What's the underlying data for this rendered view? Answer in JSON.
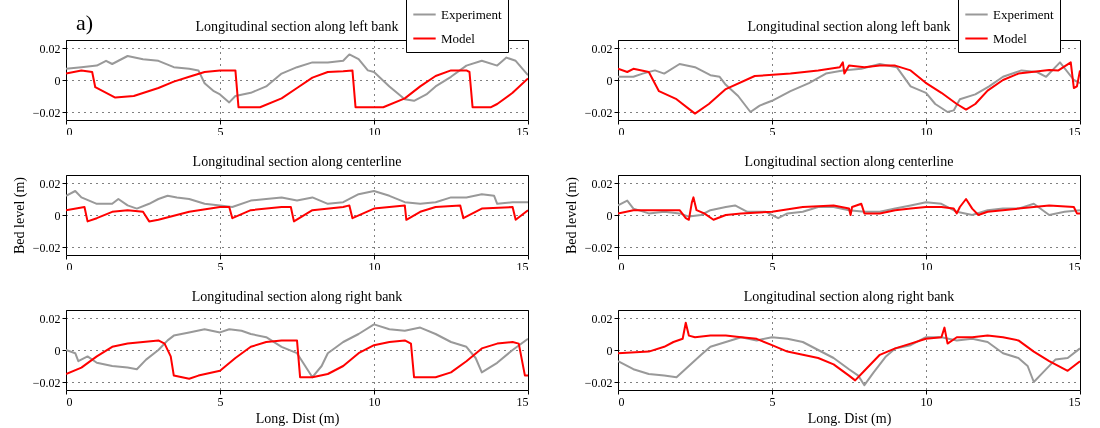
{
  "chart_data": [
    {
      "type": "line",
      "title": "Longitudinal section along left bank",
      "annotations": [
        "a)"
      ],
      "xlim": [
        0,
        15
      ],
      "xticks": [
        0,
        5,
        10,
        15
      ],
      "ylim": [
        -0.025,
        0.025
      ],
      "yticks": [
        -0.02,
        0,
        0.02
      ],
      "grid": true,
      "legend": "top right",
      "series": [
        {
          "name": "Experiment",
          "color": "#999999",
          "x": [
            0,
            0.5,
            1,
            1.3,
            1.5,
            2,
            2.5,
            3,
            3.5,
            4,
            4.3,
            4.5,
            4.8,
            5,
            5.3,
            5.5,
            6,
            6.5,
            7,
            7.5,
            8,
            8.5,
            9,
            9.2,
            9.5,
            9.8,
            10,
            10.5,
            11,
            11.3,
            11.7,
            12,
            12.5,
            13,
            13.5,
            14,
            14.3,
            14.6,
            15
          ],
          "values": [
            0.007,
            0.008,
            0.009,
            0.012,
            0.01,
            0.015,
            0.013,
            0.012,
            0.008,
            0.007,
            0.006,
            -0.002,
            -0.007,
            -0.009,
            -0.014,
            -0.01,
            -0.008,
            -0.004,
            0.004,
            0.008,
            0.011,
            0.011,
            0.012,
            0.016,
            0.013,
            0.006,
            0.005,
            -0.004,
            -0.012,
            -0.013,
            -0.009,
            -0.004,
            0.002,
            0.009,
            0.012,
            0.009,
            0.014,
            0.012,
            0.003
          ]
        },
        {
          "name": "Model",
          "color": "#ff0000",
          "x": [
            0,
            0.5,
            0.85,
            0.95,
            1.6,
            2.2,
            3,
            3.5,
            4,
            4.5,
            5,
            5.5,
            5.6,
            6.3,
            7,
            7.5,
            8,
            8.5,
            9,
            9.3,
            9.4,
            10.3,
            11,
            11.5,
            12,
            12.5,
            13,
            13.1,
            13.2,
            13.8,
            14,
            14.5,
            15
          ],
          "values": [
            0.004,
            0.006,
            0.005,
            -0.0045,
            -0.011,
            -0.01,
            -0.005,
            -0.001,
            0.002,
            0.005,
            0.006,
            0.006,
            -0.017,
            -0.017,
            -0.0115,
            -0.005,
            0.0015,
            0.005,
            0.0055,
            0.006,
            -0.017,
            -0.017,
            -0.0115,
            -0.004,
            0.0025,
            0.006,
            0.006,
            0.005,
            -0.017,
            -0.017,
            -0.015,
            -0.008,
            0.001
          ]
        }
      ]
    },
    {
      "type": "line",
      "title": "Longitudinal section along left bank",
      "xlim": [
        0,
        15
      ],
      "xticks": [
        0,
        5,
        10,
        15
      ],
      "ylim": [
        -0.025,
        0.025
      ],
      "yticks": [
        -0.02,
        0,
        0.02
      ],
      "grid": true,
      "legend": "top right",
      "series": [
        {
          "name": "Experiment",
          "color": "#999999",
          "x": [
            0,
            0.5,
            0.8,
            1.2,
            1.5,
            2,
            2.5,
            3,
            3.3,
            3.5,
            3.9,
            4.3,
            4.6,
            5,
            5.6,
            6.2,
            6.75,
            7.3,
            7.9,
            8.5,
            9.05,
            9.5,
            10,
            10.3,
            10.7,
            10.9,
            11.1,
            11.6,
            12.05,
            12.5,
            13.1,
            13.6,
            13.9,
            14.35,
            14.8,
            15
          ],
          "values": [
            0.002,
            0.002,
            0.004,
            0.006,
            0.004,
            0.01,
            0.008,
            0.003,
            0.002,
            -0.003,
            -0.01,
            -0.02,
            -0.016,
            -0.013,
            -0.007,
            -0.002,
            0.004,
            0.006,
            0.007,
            0.01,
            0.008,
            -0.004,
            -0.008,
            -0.015,
            -0.02,
            -0.019,
            -0.012,
            -0.009,
            -0.004,
            0.002,
            0.006,
            0.005,
            0.002,
            0.011,
            0.0,
            -0.002
          ]
        },
        {
          "name": "Model",
          "color": "#ff0000",
          "x": [
            0,
            0.3,
            0.5,
            1,
            1.33,
            1.9,
            2.5,
            2.95,
            3.5,
            4.44,
            5.6,
            6.5,
            7.2,
            7.3,
            7.35,
            7.5,
            8,
            8.5,
            9,
            9.5,
            9.98,
            10.5,
            11,
            11.3,
            11.6,
            12,
            12.5,
            13,
            14,
            14.3,
            14.7,
            14.8,
            14.9,
            15
          ],
          "values": [
            0.007,
            0.005,
            0.007,
            0.005,
            -0.007,
            -0.012,
            -0.021,
            -0.015,
            -0.0057,
            0.0025,
            0.004,
            0.006,
            0.008,
            0.011,
            0.004,
            0.009,
            0.008,
            0.009,
            0.009,
            0.006,
            -0.0016,
            -0.008,
            -0.015,
            -0.0185,
            -0.015,
            -0.0066,
            0.0,
            0.004,
            0.0063,
            0.006,
            0.011,
            -0.005,
            -0.004,
            0.006
          ]
        }
      ]
    },
    {
      "type": "line",
      "title": "Longitudinal section along centerline",
      "ylabel": "Bed level (m)",
      "xlim": [
        0,
        15
      ],
      "xticks": [
        0,
        5,
        10,
        15
      ],
      "ylim": [
        -0.025,
        0.025
      ],
      "yticks": [
        -0.02,
        0,
        0.02
      ],
      "grid": true,
      "series": [
        {
          "color": "#999999",
          "x": [
            0,
            0.3,
            0.5,
            1,
            1.5,
            1.7,
            2,
            2.3,
            2.7,
            3,
            3.3,
            3.6,
            4,
            4.5,
            5,
            5.4,
            6,
            6.5,
            7,
            7.5,
            8,
            8.5,
            9,
            9.5,
            10,
            10.5,
            11,
            11.5,
            12,
            12.5,
            13,
            13.5,
            13.9,
            14,
            14.5,
            15
          ],
          "values": [
            0.012,
            0.015,
            0.011,
            0.007,
            0.007,
            0.01,
            0.006,
            0.004,
            0.007,
            0.01,
            0.012,
            0.011,
            0.01,
            0.007,
            0.006,
            0.005,
            0.009,
            0.01,
            0.011,
            0.009,
            0.011,
            0.007,
            0.008,
            0.013,
            0.015,
            0.012,
            0.008,
            0.007,
            0.008,
            0.011,
            0.011,
            0.013,
            0.012,
            0.007,
            0.008,
            0.008
          ]
        },
        {
          "color": "#ff0000",
          "x": [
            0,
            0.6,
            0.7,
            1,
            1.5,
            2,
            2.5,
            2.7,
            3,
            4,
            5,
            5.3,
            5.4,
            6,
            7,
            7.3,
            7.4,
            8,
            9,
            9.2,
            9.3,
            10,
            11,
            11.05,
            11.5,
            12,
            12.8,
            12.9,
            13.5,
            14.5,
            14.6,
            15
          ],
          "values": [
            0.003,
            0.005,
            -0.004,
            -0.002,
            0.002,
            0.003,
            0.002,
            -0.004,
            -0.003,
            0.002,
            0.005,
            0.005,
            -0.002,
            0.003,
            0.005,
            0.005,
            -0.004,
            0.003,
            0.005,
            0.006,
            -0.002,
            0.004,
            0.006,
            -0.003,
            0.002,
            0.005,
            0.006,
            -0.002,
            0.004,
            0.005,
            -0.003,
            0.003
          ]
        }
      ]
    },
    {
      "type": "line",
      "title": "Longitudinal section along centerline",
      "ylabel": "Bed level (m)",
      "xlim": [
        0,
        15
      ],
      "xticks": [
        0,
        5,
        10,
        15
      ],
      "ylim": [
        -0.025,
        0.025
      ],
      "yticks": [
        -0.02,
        0,
        0.02
      ],
      "grid": true,
      "series": [
        {
          "color": "#999999",
          "x": [
            0,
            0.3,
            0.5,
            1,
            1.5,
            2,
            2.3,
            2.7,
            3,
            3.5,
            3.8,
            4.2,
            4.8,
            5.2,
            5.5,
            6,
            6.5,
            7,
            7.5,
            8,
            8.5,
            9,
            9.5,
            10,
            10.5,
            11,
            11.5,
            12,
            12.5,
            13,
            13.5,
            14,
            14.5,
            15
          ],
          "values": [
            0.006,
            0.009,
            0.004,
            0.001,
            0.002,
            0.001,
            -0.001,
            0.0,
            0.003,
            0.005,
            0.006,
            0.002,
            0.002,
            -0.002,
            0.001,
            0.002,
            0.005,
            0.005,
            0.003,
            0.002,
            0.002,
            0.004,
            0.006,
            0.008,
            0.007,
            0.002,
            0.0,
            0.003,
            0.004,
            0.004,
            0.007,
            0.0,
            0.002,
            0.003
          ]
        },
        {
          "color": "#ff0000",
          "x": [
            0,
            0.5,
            1,
            1.5,
            2,
            2.2,
            2.3,
            2.4,
            2.45,
            2.55,
            2.8,
            3.1,
            3.5,
            4,
            5,
            6,
            7,
            7.5,
            7.55,
            7.6,
            7.9,
            8,
            8.5,
            9,
            9.5,
            10,
            10.5,
            10.9,
            11,
            11.1,
            11.3,
            11.5,
            11.7,
            12,
            13,
            14,
            14.8,
            14.9,
            15
          ],
          "values": [
            0.001,
            0.003,
            0.003,
            0.003,
            0.003,
            -0.002,
            -0.003,
            0.008,
            0.011,
            0.003,
            0.001,
            -0.003,
            0.0,
            0.001,
            0.002,
            0.005,
            0.006,
            0.004,
            0.0,
            0.005,
            0.007,
            0.001,
            0.001,
            0.003,
            0.004,
            0.005,
            0.005,
            0.004,
            0.001,
            0.005,
            0.01,
            0.004,
            0.0,
            0.002,
            0.004,
            0.006,
            0.005,
            0.001,
            0.001
          ]
        }
      ]
    },
    {
      "type": "line",
      "title": "Longitudinal section along right bank",
      "xlabel": "Long. Dist (m)",
      "xlim": [
        0,
        15
      ],
      "xticks": [
        0,
        5,
        10,
        15
      ],
      "ylim": [
        -0.025,
        0.025
      ],
      "yticks": [
        -0.02,
        0,
        0.02
      ],
      "grid": true,
      "series": [
        {
          "color": "#999999",
          "x": [
            0,
            0.3,
            0.4,
            0.7,
            1,
            1.5,
            2,
            2.3,
            2.6,
            3,
            3.3,
            3.5,
            4,
            4.5,
            5,
            5.3,
            5.7,
            6,
            6.5,
            7,
            7.5,
            8,
            8.3,
            8.5,
            9,
            9.5,
            10,
            10.5,
            11,
            11.5,
            12,
            12.5,
            13,
            13.3,
            13.5,
            14,
            14.5,
            15
          ],
          "values": [
            0.0,
            -0.002,
            -0.007,
            -0.004,
            -0.008,
            -0.01,
            -0.011,
            -0.012,
            -0.006,
            0.0,
            0.006,
            0.009,
            0.011,
            0.013,
            0.011,
            0.013,
            0.012,
            0.01,
            0.008,
            0.002,
            -0.002,
            -0.017,
            -0.01,
            -0.002,
            0.005,
            0.01,
            0.016,
            0.013,
            0.012,
            0.014,
            0.01,
            0.005,
            0.002,
            -0.005,
            -0.014,
            -0.008,
            0.0,
            0.007
          ]
        },
        {
          "color": "#ff0000",
          "x": [
            0,
            0.5,
            1,
            1.5,
            2,
            2.5,
            3,
            3.2,
            3.4,
            3.5,
            4,
            4.3,
            5,
            5.5,
            6,
            6.5,
            7,
            7.5,
            7.6,
            8,
            8.5,
            9,
            9.5,
            10,
            10.5,
            11,
            11.2,
            11.3,
            12,
            12.5,
            13,
            13.5,
            14,
            14.5,
            14.7,
            14.9,
            15
          ],
          "values": [
            -0.015,
            -0.011,
            -0.004,
            0.002,
            0.004,
            0.005,
            0.006,
            0.004,
            -0.004,
            -0.016,
            -0.018,
            -0.016,
            -0.013,
            -0.005,
            0.002,
            0.005,
            0.006,
            0.006,
            -0.017,
            -0.017,
            -0.015,
            -0.01,
            -0.002,
            0.003,
            0.005,
            0.006,
            0.004,
            -0.017,
            -0.017,
            -0.014,
            -0.007,
            0.001,
            0.004,
            0.005,
            0.004,
            -0.016,
            -0.016
          ]
        }
      ]
    },
    {
      "type": "line",
      "title": "Longitudinal section along right bank",
      "xlabel": "Long. Dist (m)",
      "xlim": [
        0,
        15
      ],
      "xticks": [
        0,
        5,
        10,
        15
      ],
      "ylim": [
        -0.025,
        0.025
      ],
      "yticks": [
        -0.02,
        0,
        0.02
      ],
      "grid": true,
      "series": [
        {
          "color": "#999999",
          "x": [
            0,
            0.5,
            1,
            1.5,
            1.9,
            2.3,
            2.7,
            3,
            3.5,
            4,
            4.5,
            5,
            5.5,
            6,
            6.5,
            7,
            7.5,
            7.8,
            8,
            8.3,
            8.7,
            9,
            9.5,
            10,
            10.5,
            11,
            11.5,
            12,
            12.5,
            13,
            13.3,
            13.5,
            13.8,
            14.2,
            14.6,
            15
          ],
          "values": [
            -0.007,
            -0.012,
            -0.015,
            -0.016,
            -0.017,
            -0.01,
            -0.003,
            0.002,
            0.005,
            0.008,
            0.006,
            0.008,
            0.007,
            0.005,
            0.0,
            -0.005,
            -0.012,
            -0.016,
            -0.022,
            -0.014,
            -0.004,
            0.001,
            0.003,
            0.008,
            0.008,
            0.006,
            0.007,
            0.005,
            -0.002,
            -0.005,
            -0.01,
            -0.02,
            -0.014,
            -0.006,
            -0.005,
            0.001
          ]
        },
        {
          "color": "#ff0000",
          "x": [
            0,
            1,
            1.5,
            1.8,
            2.1,
            2.2,
            2.3,
            2.5,
            3,
            3.5,
            4,
            4.5,
            5,
            5.5,
            6,
            6.5,
            7,
            7.5,
            7.7,
            8,
            8.5,
            9,
            9.5,
            10,
            10.5,
            10.6,
            10.7,
            11,
            11.5,
            12,
            12.5,
            13,
            13.5,
            14,
            14.6,
            15
          ],
          "values": [
            -0.002,
            -0.001,
            0.002,
            0.005,
            0.007,
            0.017,
            0.009,
            0.008,
            0.009,
            0.009,
            0.008,
            0.007,
            0.003,
            -0.001,
            -0.003,
            -0.005,
            -0.009,
            -0.016,
            -0.019,
            -0.013,
            -0.003,
            0.001,
            0.004,
            0.007,
            0.008,
            0.014,
            0.004,
            0.008,
            0.008,
            0.009,
            0.008,
            0.006,
            -0.001,
            -0.007,
            -0.013,
            -0.007
          ]
        }
      ]
    }
  ]
}
